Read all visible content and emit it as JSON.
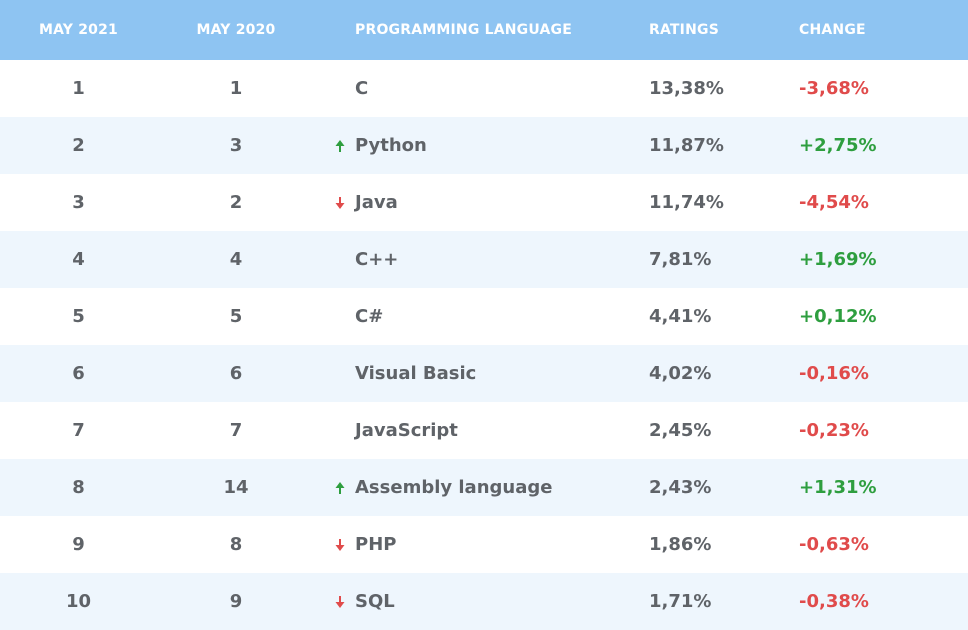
{
  "headers": {
    "may2021": "MAY 2021",
    "may2020": "MAY 2020",
    "language": "PROGRAMMING LANGUAGE",
    "ratings": "RATINGS",
    "change": "CHANGE"
  },
  "colors": {
    "header_bg": "#8ec4f2",
    "row_alt_bg": "#eef6fd",
    "positive": "#2e9e3f",
    "negative": "#e04b4b"
  },
  "rows": [
    {
      "may2021": "1",
      "may2020": "1",
      "trend": "none",
      "language": "C",
      "rating": "13,38%",
      "change": "-3,68%",
      "change_sign": "neg"
    },
    {
      "may2021": "2",
      "may2020": "3",
      "trend": "up",
      "language": "Python",
      "rating": "11,87%",
      "change": "+2,75%",
      "change_sign": "pos"
    },
    {
      "may2021": "3",
      "may2020": "2",
      "trend": "down",
      "language": "Java",
      "rating": "11,74%",
      "change": "-4,54%",
      "change_sign": "neg"
    },
    {
      "may2021": "4",
      "may2020": "4",
      "trend": "none",
      "language": "C++",
      "rating": "7,81%",
      "change": "+1,69%",
      "change_sign": "pos"
    },
    {
      "may2021": "5",
      "may2020": "5",
      "trend": "none",
      "language": "C#",
      "rating": "4,41%",
      "change": "+0,12%",
      "change_sign": "pos"
    },
    {
      "may2021": "6",
      "may2020": "6",
      "trend": "none",
      "language": "Visual Basic",
      "rating": "4,02%",
      "change": "-0,16%",
      "change_sign": "neg"
    },
    {
      "may2021": "7",
      "may2020": "7",
      "trend": "none",
      "language": "JavaScript",
      "rating": "2,45%",
      "change": "-0,23%",
      "change_sign": "neg"
    },
    {
      "may2021": "8",
      "may2020": "14",
      "trend": "up",
      "language": "Assembly language",
      "rating": "2,43%",
      "change": "+1,31%",
      "change_sign": "pos"
    },
    {
      "may2021": "9",
      "may2020": "8",
      "trend": "down",
      "language": "PHP",
      "rating": "1,86%",
      "change": "-0,63%",
      "change_sign": "neg"
    },
    {
      "may2021": "10",
      "may2020": "9",
      "trend": "down",
      "language": "SQL",
      "rating": "1,71%",
      "change": "-0,38%",
      "change_sign": "neg"
    }
  ]
}
